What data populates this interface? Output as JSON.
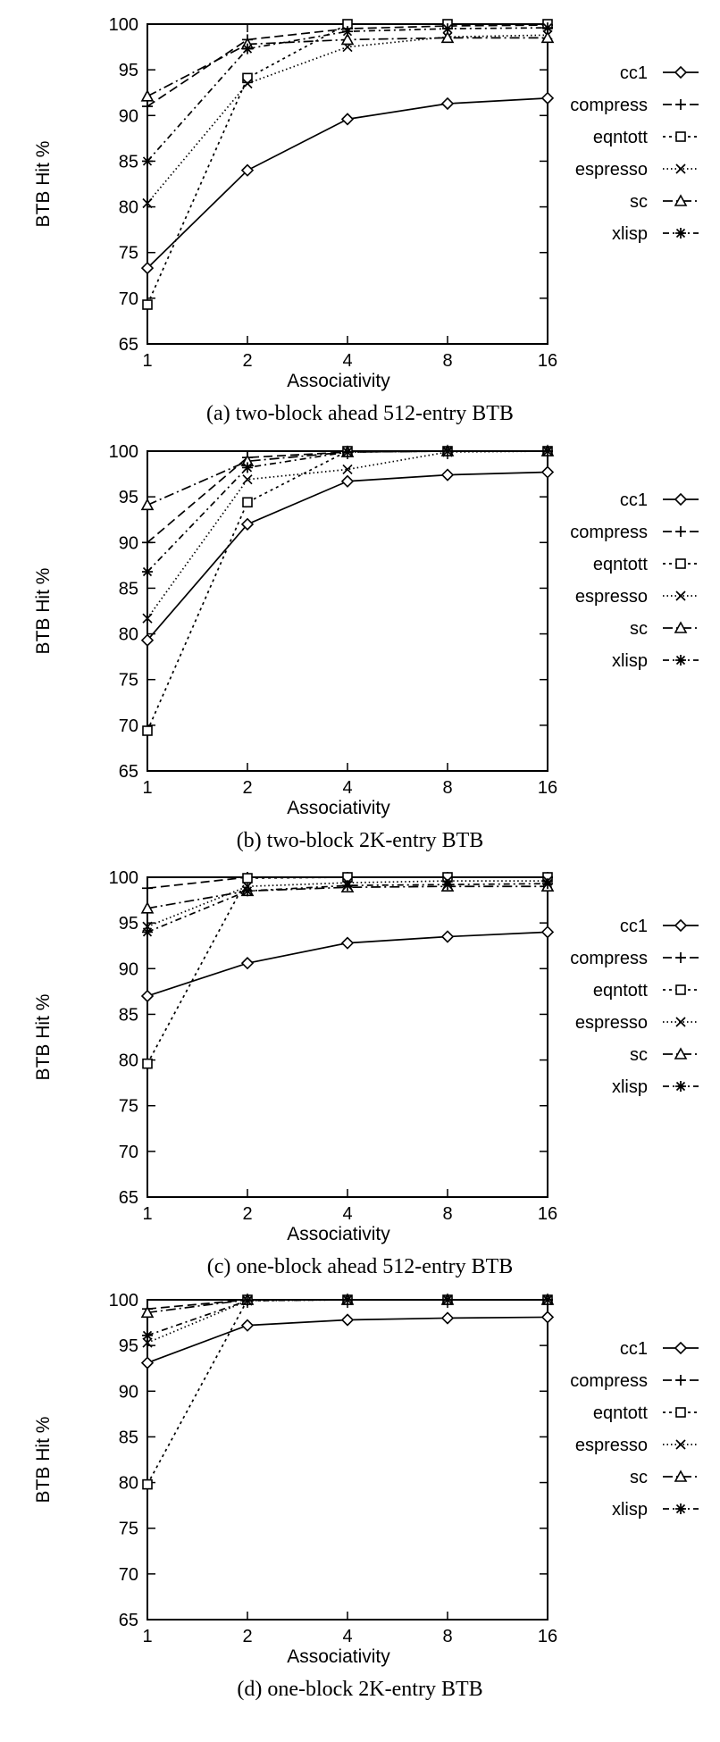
{
  "chart_data": [
    {
      "type": "line",
      "caption": "(a) two-block ahead 512-entry BTB",
      "xlabel": "Associativity",
      "ylabel": "BTB Hit %",
      "categories": [
        "1",
        "2",
        "4",
        "8",
        "16"
      ],
      "ylim": [
        65,
        100
      ],
      "yticks": [
        65,
        70,
        75,
        80,
        85,
        90,
        95,
        100
      ],
      "legend_position": "right",
      "series": [
        {
          "name": "cc1",
          "values": [
            73.3,
            84.0,
            89.6,
            91.3,
            91.9
          ]
        },
        {
          "name": "compress",
          "values": [
            91.0,
            98.3,
            99.5,
            99.8,
            99.9
          ]
        },
        {
          "name": "eqntott",
          "values": [
            69.3,
            94.1,
            100.0,
            100.0,
            100.0
          ]
        },
        {
          "name": "espresso",
          "values": [
            80.4,
            93.5,
            97.5,
            98.6,
            98.8
          ]
        },
        {
          "name": "sc",
          "values": [
            92.1,
            97.8,
            98.3,
            98.5,
            98.5
          ]
        },
        {
          "name": "xlisp",
          "values": [
            85.0,
            97.3,
            99.2,
            99.5,
            99.6
          ]
        }
      ]
    },
    {
      "type": "line",
      "caption": "(b) two-block 2K-entry BTB",
      "xlabel": "Associativity",
      "ylabel": "BTB Hit %",
      "categories": [
        "1",
        "2",
        "4",
        "8",
        "16"
      ],
      "ylim": [
        65,
        100
      ],
      "yticks": [
        65,
        70,
        75,
        80,
        85,
        90,
        95,
        100
      ],
      "legend_position": "right",
      "series": [
        {
          "name": "cc1",
          "values": [
            79.3,
            92.0,
            96.7,
            97.4,
            97.7
          ]
        },
        {
          "name": "compress",
          "values": [
            90.0,
            99.3,
            99.9,
            100.0,
            100.0
          ]
        },
        {
          "name": "eqntott",
          "values": [
            69.4,
            94.4,
            100.0,
            100.0,
            100.0
          ]
        },
        {
          "name": "espresso",
          "values": [
            81.7,
            96.9,
            98.0,
            99.9,
            100.0
          ]
        },
        {
          "name": "sc",
          "values": [
            94.1,
            98.9,
            99.9,
            100.0,
            100.0
          ]
        },
        {
          "name": "xlisp",
          "values": [
            86.8,
            98.2,
            99.9,
            100.0,
            100.0
          ]
        }
      ]
    },
    {
      "type": "line",
      "caption": "(c) one-block ahead 512-entry BTB",
      "xlabel": "Associativity",
      "ylabel": "BTB Hit %",
      "categories": [
        "1",
        "2",
        "4",
        "8",
        "16"
      ],
      "ylim": [
        65,
        100
      ],
      "yticks": [
        65,
        70,
        75,
        80,
        85,
        90,
        95,
        100
      ],
      "legend_position": "right",
      "series": [
        {
          "name": "cc1",
          "values": [
            87.0,
            90.6,
            92.8,
            93.5,
            94.0
          ]
        },
        {
          "name": "compress",
          "values": [
            98.8,
            100.0,
            100.0,
            100.0,
            100.0
          ]
        },
        {
          "name": "eqntott",
          "values": [
            79.6,
            99.9,
            100.0,
            100.0,
            100.0
          ]
        },
        {
          "name": "espresso",
          "values": [
            94.6,
            99.0,
            99.4,
            99.6,
            99.6
          ]
        },
        {
          "name": "sc",
          "values": [
            96.6,
            98.5,
            98.9,
            99.0,
            99.0
          ]
        },
        {
          "name": "xlisp",
          "values": [
            94.0,
            98.5,
            99.1,
            99.2,
            99.3
          ]
        }
      ]
    },
    {
      "type": "line",
      "caption": "(d) one-block 2K-entry BTB",
      "xlabel": "Associativity",
      "ylabel": "BTB Hit %",
      "categories": [
        "1",
        "2",
        "4",
        "8",
        "16"
      ],
      "ylim": [
        65,
        100
      ],
      "yticks": [
        65,
        70,
        75,
        80,
        85,
        90,
        95,
        100
      ],
      "legend_position": "right",
      "series": [
        {
          "name": "cc1",
          "values": [
            93.1,
            97.2,
            97.8,
            98.0,
            98.1
          ]
        },
        {
          "name": "compress",
          "values": [
            99.0,
            100.0,
            100.0,
            100.0,
            100.0
          ]
        },
        {
          "name": "eqntott",
          "values": [
            79.8,
            100.0,
            100.0,
            100.0,
            100.0
          ]
        },
        {
          "name": "espresso",
          "values": [
            95.3,
            99.9,
            100.0,
            100.0,
            100.0
          ]
        },
        {
          "name": "sc",
          "values": [
            98.6,
            100.0,
            100.0,
            100.0,
            100.0
          ]
        },
        {
          "name": "xlisp",
          "values": [
            96.1,
            99.9,
            100.0,
            100.0,
            100.0
          ]
        }
      ]
    }
  ]
}
